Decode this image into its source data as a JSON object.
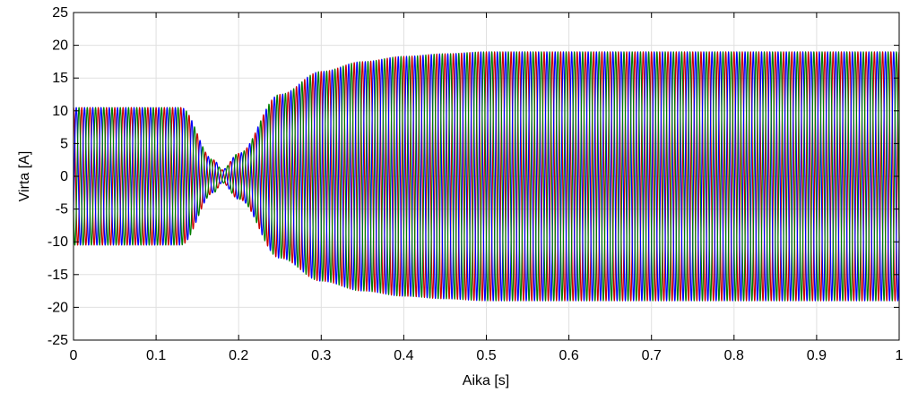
{
  "chart_data": {
    "type": "line",
    "title": "",
    "xlabel": "Aika [s]",
    "ylabel": "Virta [A]",
    "xlim": [
      0,
      1
    ],
    "ylim": [
      -25,
      25
    ],
    "xticks": [
      "0",
      "0.1",
      "0.2",
      "0.3",
      "0.4",
      "0.5",
      "0.6",
      "0.7",
      "0.8",
      "0.9",
      "1"
    ],
    "yticks": [
      "25",
      "20",
      "15",
      "10",
      "5",
      "0",
      "-5",
      "-10",
      "-15",
      "-20",
      "-25"
    ],
    "grid": true,
    "frequency_hz": 100,
    "envelope": {
      "t": [
        0,
        0.13,
        0.17,
        0.18,
        0.2,
        0.25,
        0.3,
        0.35,
        0.4,
        0.45,
        0.5,
        1.0
      ],
      "amplitude": [
        10.5,
        10.5,
        2.5,
        1.0,
        3.5,
        12.5,
        16.0,
        17.5,
        18.3,
        18.7,
        19.0,
        19.0
      ]
    },
    "series": [
      {
        "color": "#cc0000",
        "phase_deg": 90
      },
      {
        "color": "#0000ff",
        "phase_deg": -30
      },
      {
        "color": "#007f00",
        "phase_deg": 210
      }
    ]
  }
}
